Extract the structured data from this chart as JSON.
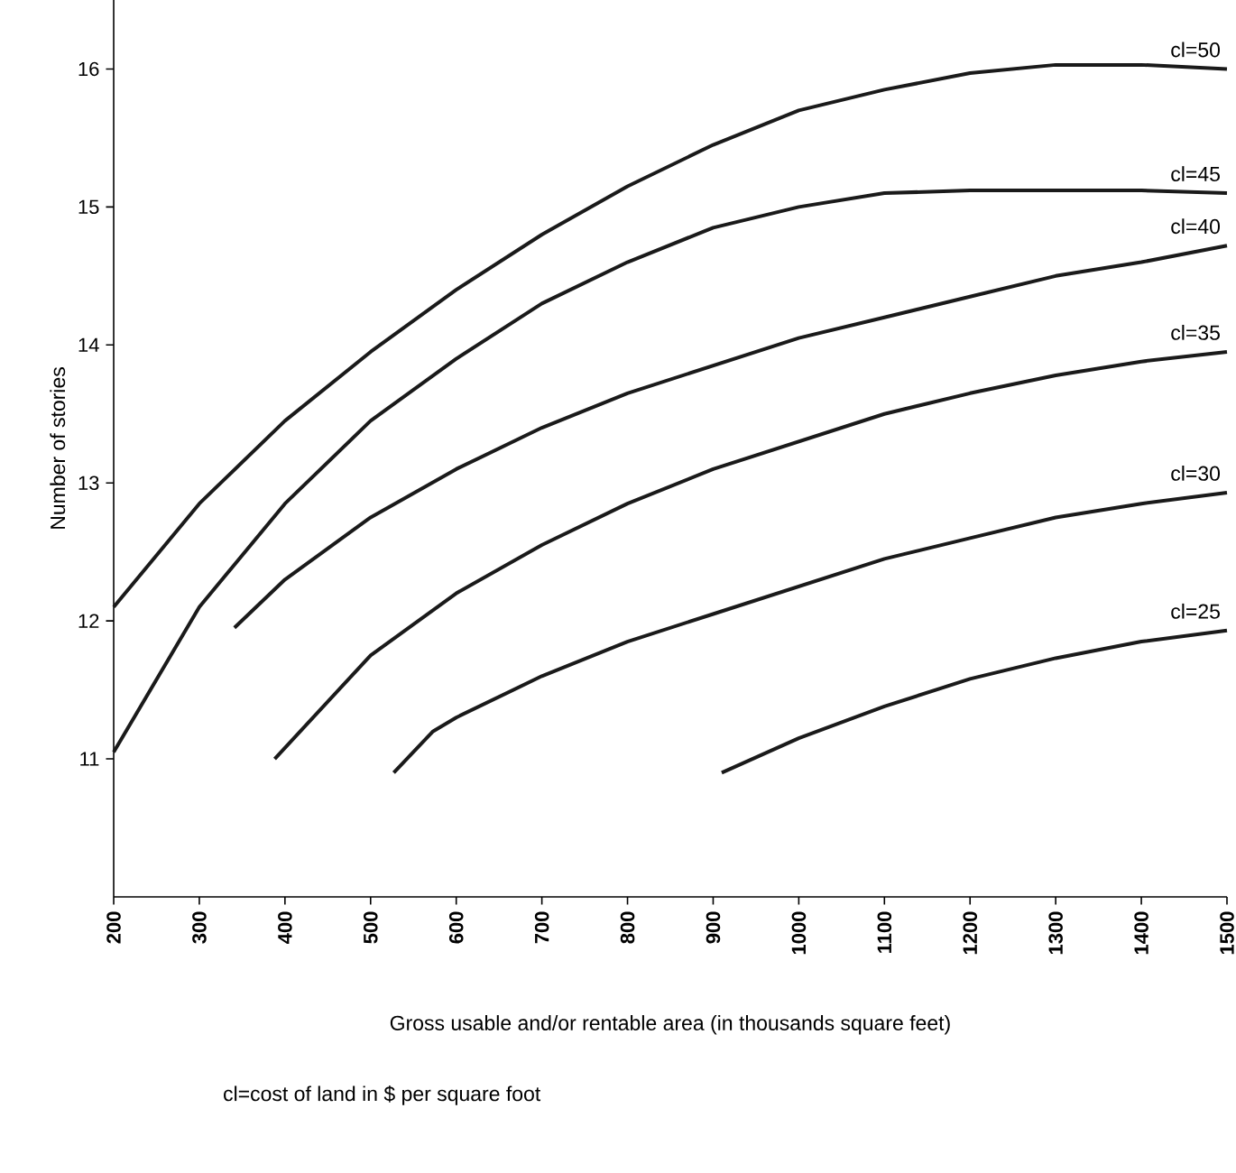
{
  "chart_data": {
    "type": "line",
    "xlabel": "Gross usable and/or rentable area (in thousands square feet)",
    "ylabel": "Number of stories",
    "annotations": [
      "cl=cost of land in $ per square foot"
    ],
    "xlim": [
      200,
      1500
    ],
    "xticks": [
      200,
      300,
      400,
      500,
      600,
      700,
      800,
      900,
      1000,
      1100,
      1200,
      1300,
      1400,
      1500
    ],
    "ylim": [
      10,
      16.5
    ],
    "yticks": [
      11,
      12,
      13,
      14,
      15,
      16
    ],
    "grid": false,
    "marker": "none",
    "line_style": "solid",
    "series": [
      {
        "name": "cl=50",
        "color": "#1a1a1a",
        "x": [
          200,
          300,
          400,
          500,
          600,
          700,
          800,
          900,
          1000,
          1100,
          1200,
          1300,
          1400,
          1500
        ],
        "values": [
          12.1,
          12.85,
          13.45,
          13.95,
          14.4,
          14.8,
          15.15,
          15.45,
          15.7,
          15.85,
          15.97,
          16.03,
          16.03,
          16.0
        ]
      },
      {
        "name": "cl=45",
        "color": "#1a1a1a",
        "x": [
          200,
          300,
          400,
          500,
          600,
          700,
          800,
          900,
          1000,
          1100,
          1200,
          1300,
          1400,
          1500
        ],
        "values": [
          11.05,
          12.1,
          12.85,
          13.45,
          13.9,
          14.3,
          14.6,
          14.85,
          15.0,
          15.1,
          15.12,
          15.12,
          15.12,
          15.1
        ]
      },
      {
        "name": "cl=40",
        "color": "#1a1a1a",
        "x": [
          341,
          400,
          500,
          600,
          700,
          800,
          900,
          1000,
          1100,
          1200,
          1300,
          1400,
          1500
        ],
        "values": [
          11.95,
          12.3,
          12.75,
          13.1,
          13.4,
          13.65,
          13.85,
          14.05,
          14.2,
          14.35,
          14.5,
          14.6,
          14.72
        ]
      },
      {
        "name": "cl=35",
        "color": "#1a1a1a",
        "x": [
          388,
          500,
          600,
          700,
          800,
          900,
          1000,
          1100,
          1200,
          1300,
          1400,
          1500
        ],
        "values": [
          11.0,
          11.75,
          12.2,
          12.55,
          12.85,
          13.1,
          13.3,
          13.5,
          13.65,
          13.78,
          13.88,
          13.95
        ]
      },
      {
        "name": "cl=30",
        "color": "#1a1a1a",
        "x": [
          527,
          573,
          600,
          700,
          800,
          900,
          1000,
          1100,
          1200,
          1300,
          1400,
          1500
        ],
        "values": [
          10.9,
          11.2,
          11.3,
          11.6,
          11.85,
          12.05,
          12.25,
          12.45,
          12.6,
          12.75,
          12.85,
          12.93
        ]
      },
      {
        "name": "cl=25",
        "color": "#1a1a1a",
        "x": [
          910,
          1000,
          1100,
          1200,
          1300,
          1400,
          1500
        ],
        "values": [
          10.9,
          11.15,
          11.38,
          11.58,
          11.73,
          11.85,
          11.93
        ]
      }
    ]
  }
}
